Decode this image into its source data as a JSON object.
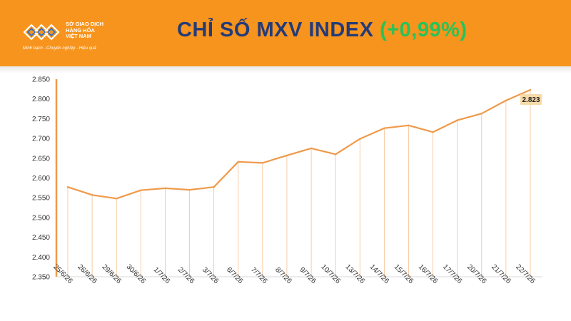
{
  "header": {
    "logo_lines": [
      "SỞ GIAO DỊCH",
      "HÀNG HÓA",
      "VIỆT NAM"
    ],
    "slogan": "Minh bạch - Chuyên nghiệp - Hiệu quả",
    "title_main": "CHỈ SỐ MXV INDEX",
    "title_change": "(+0,99%)"
  },
  "colors": {
    "header_bg": "#f7941d",
    "title": "#243b78",
    "change_positive": "#27c25a",
    "line": "#ef9a4a",
    "label_bg": "#f8d9a8"
  },
  "chart_data": {
    "type": "line",
    "categories": [
      "25/6/26",
      "26/6/26",
      "29/6/26",
      "30/6/26",
      "1/7/26",
      "2/7/26",
      "3/7/26",
      "6/7/26",
      "7/7/26",
      "8/7/26",
      "9/7/26",
      "10/7/26",
      "13/7/26",
      "14/7/26",
      "15/7/26",
      "16/7/26",
      "17/7/26",
      "20/7/26",
      "21/7/26",
      "22/7/26"
    ],
    "values": [
      2577,
      2557,
      2548,
      2569,
      2574,
      2570,
      2577,
      2641,
      2638,
      2657,
      2675,
      2660,
      2699,
      2726,
      2733,
      2716,
      2746,
      2763,
      2796,
      2823
    ],
    "ylim": [
      2350,
      2850
    ],
    "yticks": [
      "2.350",
      "2.400",
      "2.450",
      "2.500",
      "2.550",
      "2.600",
      "2.650",
      "2.700",
      "2.750",
      "2.800",
      "2.850"
    ],
    "ytick_values": [
      2350,
      2400,
      2450,
      2500,
      2550,
      2600,
      2650,
      2700,
      2750,
      2800,
      2850
    ],
    "last_label": "2.823",
    "title": "",
    "xlabel": "",
    "ylabel": ""
  }
}
